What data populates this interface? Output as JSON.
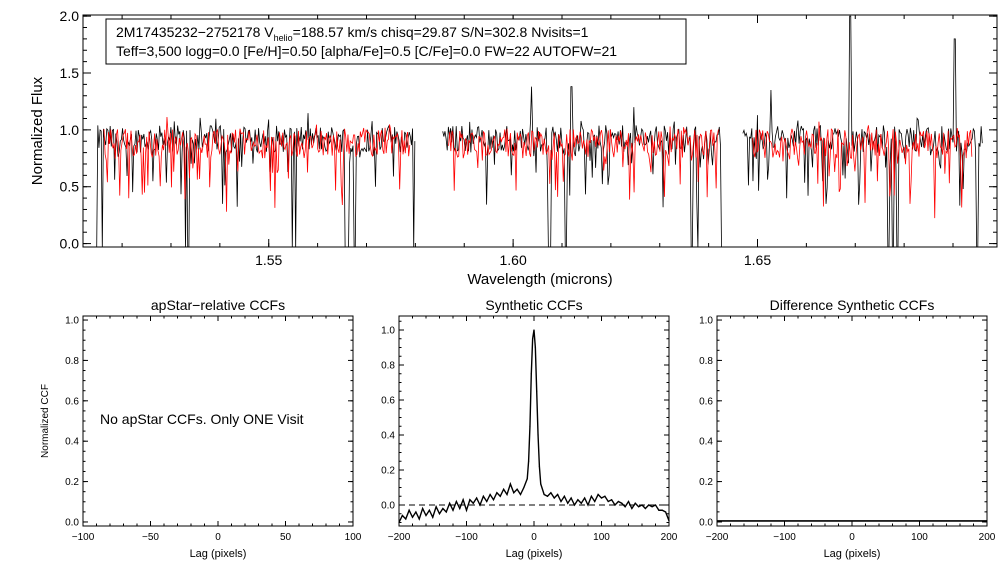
{
  "colors": {
    "observed": "#000000",
    "model": "#ff0000",
    "axes": "#000000",
    "background": "#ffffff"
  },
  "chart_data": [
    {
      "id": "spectrum",
      "type": "line",
      "xlabel": "Wavelength (microns)",
      "ylabel": "Normalized Flux",
      "xlim": [
        1.512,
        1.699
      ],
      "ylim": [
        -0.03,
        2.01
      ],
      "xticks": [
        1.55,
        1.6,
        1.65
      ],
      "xtick_labels": [
        "1.55",
        "1.60",
        "1.65"
      ],
      "yticks": [
        0.0,
        0.5,
        1.0,
        1.5,
        2.0
      ],
      "ytick_labels": [
        "0.0",
        "0.5",
        "1.0",
        "1.5",
        "2.0"
      ],
      "annotation": {
        "line1_prefix": "2M17435232−2752178  V",
        "line1_sub": "helio",
        "line1_suffix": "=188.57 km/s  chisq=29.87  S/N=302.8  Nvisits=1",
        "line2": "Teff=3,500 logg=0.0 [Fe/H]=0.50 [alpha/Fe]=0.5 [C/Fe]=0.0 FW=22 AUTOFW=21"
      },
      "chips": [
        [
          1.5148,
          1.58
        ],
        [
          1.5856,
          1.643
        ],
        [
          1.647,
          1.696
        ]
      ],
      "model_chips": [
        [
          1.5163,
          1.579
        ],
        [
          1.5868,
          1.642
        ],
        [
          1.649,
          1.694
        ]
      ],
      "series": [
        {
          "name": "observed",
          "base": 0.92,
          "noise": 0.12,
          "absorption_lines": [
            1.5147,
            1.516,
            1.533,
            1.5335,
            1.5548,
            1.5555,
            1.5658,
            1.5662,
            1.5676,
            1.5797,
            1.6073,
            1.6076,
            1.6108,
            1.6365,
            1.6378,
            1.6427,
            1.6768,
            1.6777,
            1.6786,
            1.695
          ],
          "emission_lines": [
            {
              "x": 1.6038,
              "y": 1.38
            },
            {
              "x": 1.6119,
              "y": 1.38
            },
            {
              "x": 1.6247,
              "y": 1.2
            },
            {
              "x": 1.65,
              "y": 1.13
            },
            {
              "x": 1.6528,
              "y": 1.35
            },
            {
              "x": 1.669,
              "y": 2.0
            },
            {
              "x": 1.6904,
              "y": 1.8
            }
          ]
        },
        {
          "name": "model",
          "base": 0.88,
          "noise": 0.13
        }
      ]
    },
    {
      "id": "apstar-ccf",
      "type": "line",
      "title": "apStar−relative CCFs",
      "xlabel": "Lag (pixels)",
      "ylabel": "Normalized CCF",
      "xlim": [
        -100,
        100
      ],
      "ylim": [
        -0.02,
        1.02
      ],
      "xticks": [
        -100,
        -50,
        0,
        50,
        100
      ],
      "xtick_labels": [
        "−100",
        "−50",
        "0",
        "50",
        "100"
      ],
      "yticks": [
        0.0,
        0.2,
        0.4,
        0.6,
        0.8,
        1.0
      ],
      "ytick_labels": [
        "0.0",
        "0.2",
        "0.4",
        "0.6",
        "0.8",
        "1.0"
      ],
      "message": "No apStar CCFs.  Only ONE Visit",
      "series": []
    },
    {
      "id": "synthetic-ccf",
      "type": "line",
      "title": "Synthetic CCFs",
      "xlabel": "Lag (pixels)",
      "xlim": [
        -200,
        200
      ],
      "ylim": [
        -0.12,
        1.08
      ],
      "xticks": [
        -200,
        -100,
        0,
        100,
        200
      ],
      "xtick_labels": [
        "−200",
        "−100",
        "0",
        "100",
        "200"
      ],
      "yticks": [
        0.0,
        0.2,
        0.4,
        0.6,
        0.8,
        1.0
      ],
      "ytick_labels": [
        "0.0",
        "0.2",
        "0.4",
        "0.6",
        "0.8",
        "1.0"
      ],
      "baseline": 0.0,
      "series": [
        {
          "name": "ccf",
          "x": [
            -200,
            -195,
            -190,
            -185,
            -180,
            -175,
            -170,
            -165,
            -160,
            -155,
            -150,
            -145,
            -140,
            -135,
            -130,
            -125,
            -120,
            -115,
            -110,
            -105,
            -100,
            -95,
            -90,
            -85,
            -80,
            -75,
            -70,
            -65,
            -60,
            -55,
            -50,
            -45,
            -40,
            -35,
            -30,
            -25,
            -20,
            -15,
            -10,
            -8,
            -6,
            -4,
            -2,
            0,
            2,
            4,
            6,
            8,
            10,
            15,
            20,
            25,
            30,
            35,
            40,
            45,
            50,
            55,
            60,
            65,
            70,
            75,
            80,
            85,
            90,
            95,
            100,
            105,
            110,
            115,
            120,
            125,
            130,
            135,
            140,
            145,
            150,
            155,
            160,
            165,
            170,
            175,
            180,
            185,
            190,
            195,
            200
          ],
          "y": [
            -0.1,
            -0.06,
            -0.08,
            -0.03,
            -0.07,
            -0.04,
            -0.08,
            -0.02,
            -0.06,
            -0.03,
            -0.07,
            -0.01,
            -0.05,
            -0.02,
            -0.04,
            0.01,
            -0.03,
            0.02,
            -0.02,
            0.03,
            -0.03,
            0.03,
            0.01,
            0.04,
            0.0,
            0.05,
            0.02,
            0.06,
            0.03,
            0.07,
            0.05,
            0.09,
            0.06,
            0.12,
            0.07,
            0.09,
            0.06,
            0.1,
            0.15,
            0.25,
            0.45,
            0.75,
            0.95,
            1.0,
            0.9,
            0.65,
            0.4,
            0.22,
            0.12,
            0.06,
            0.05,
            0.07,
            0.04,
            0.06,
            0.02,
            0.05,
            0.01,
            0.04,
            0.0,
            0.03,
            0.01,
            0.04,
            0.0,
            0.05,
            0.02,
            0.06,
            0.04,
            0.05,
            0.02,
            0.03,
            0.0,
            0.02,
            0.01,
            -0.01,
            0.02,
            -0.02,
            0.01,
            -0.01,
            0.0,
            -0.02,
            0.0,
            -0.01,
            0.0,
            -0.03,
            -0.03,
            -0.04,
            -0.09
          ]
        }
      ]
    },
    {
      "id": "difference-ccf",
      "type": "line",
      "title": "Difference Synthetic CCFs",
      "xlabel": "Lag (pixels)",
      "xlim": [
        -200,
        200
      ],
      "ylim": [
        -0.02,
        1.02
      ],
      "xticks": [
        -200,
        -100,
        0,
        100,
        200
      ],
      "xtick_labels": [
        "−200",
        "−100",
        "0",
        "100",
        "200"
      ],
      "yticks": [
        0.0,
        0.2,
        0.4,
        0.6,
        0.8,
        1.0
      ],
      "ytick_labels": [
        "0.0",
        "0.2",
        "0.4",
        "0.6",
        "0.8",
        "1.0"
      ],
      "series": [
        {
          "name": "difference",
          "x": [
            -200,
            200
          ],
          "y": [
            0.0,
            0.0
          ]
        }
      ]
    }
  ]
}
